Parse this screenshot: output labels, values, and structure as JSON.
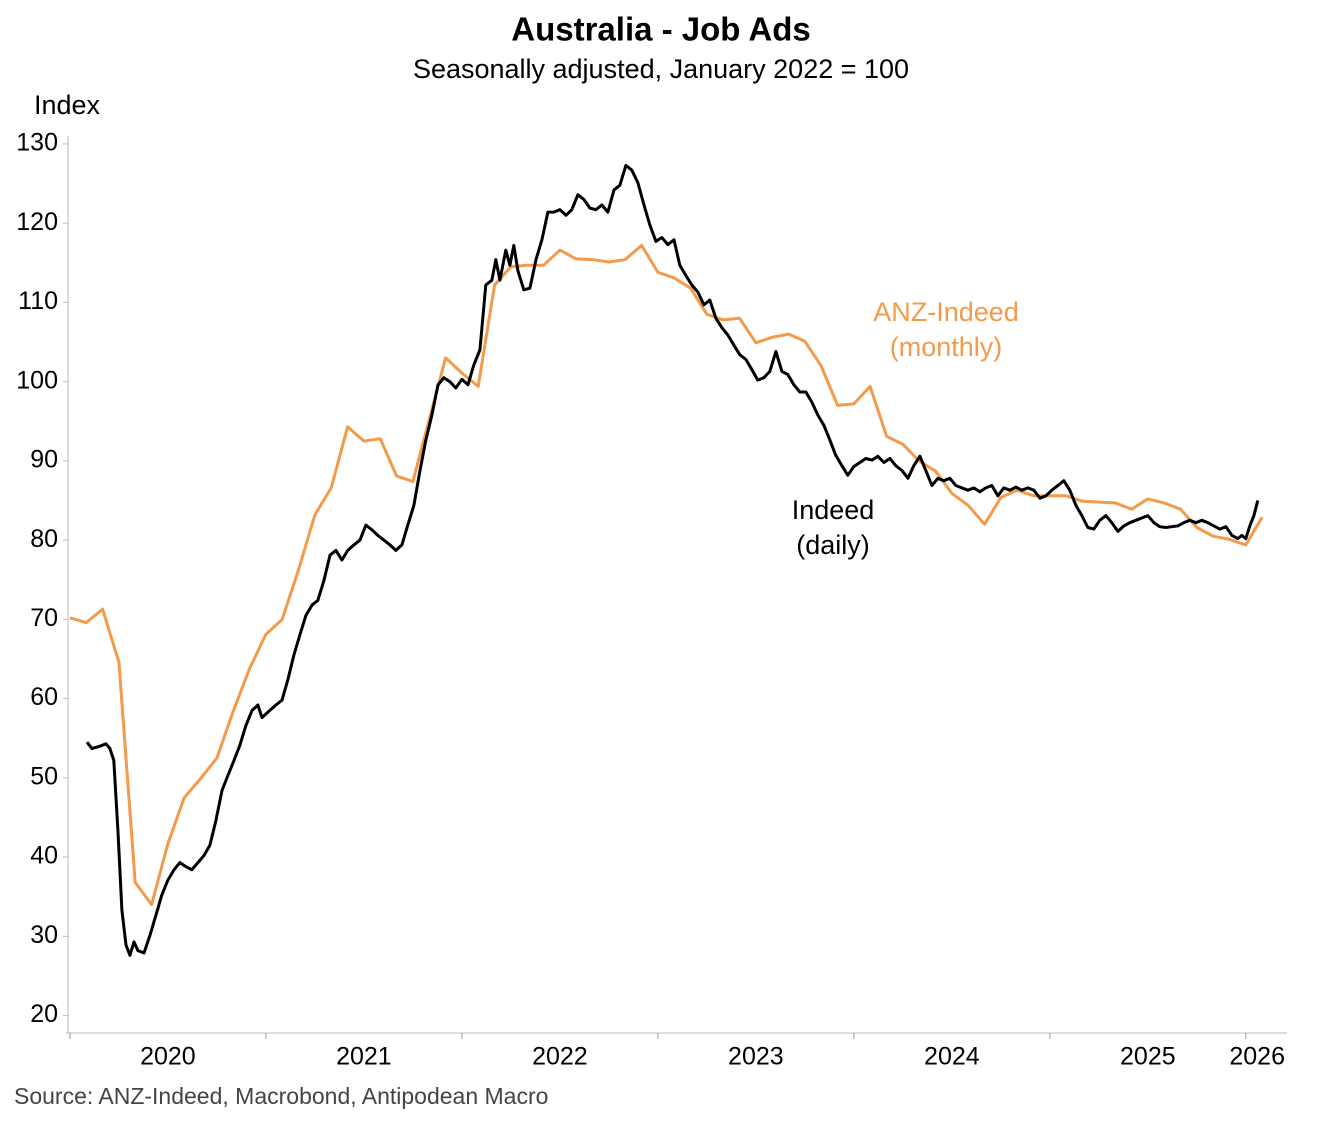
{
  "chart_data": {
    "type": "line",
    "title": "Australia - Job Ads",
    "subtitle": "Seasonally adjusted, January 2022 = 100",
    "y_label": "Index",
    "source": "Source: ANZ-Indeed, Macrobond, Antipodean Macro",
    "xlim": [
      2019.98,
      2026.21
    ],
    "xticks": [
      {
        "value": 2020,
        "label": "2020"
      },
      {
        "value": 2021,
        "label": "2021"
      },
      {
        "value": 2022,
        "label": "2022"
      },
      {
        "value": 2023,
        "label": "2023"
      },
      {
        "value": 2024,
        "label": "2024"
      },
      {
        "value": 2025,
        "label": "2025"
      },
      {
        "value": 2026,
        "label": "2026"
      }
    ],
    "ylim": [
      17.8,
      130.5
    ],
    "yticks": [
      20,
      30,
      40,
      50,
      60,
      70,
      80,
      90,
      100,
      110,
      120,
      130
    ],
    "grid": false,
    "series": [
      {
        "label": [
          "ANZ-Indeed",
          "(monthly)"
        ],
        "color": "#f39a4b",
        "x": [
          2020,
          2020.083,
          2020.167,
          2020.25,
          2020.333,
          2020.417,
          2020.5,
          2020.583,
          2020.667,
          2020.75,
          2020.833,
          2020.917,
          2021,
          2021.083,
          2021.167,
          2021.25,
          2021.333,
          2021.417,
          2021.5,
          2021.583,
          2021.667,
          2021.75,
          2021.833,
          2021.917,
          2022,
          2022.083,
          2022.167,
          2022.25,
          2022.333,
          2022.417,
          2022.5,
          2022.583,
          2022.667,
          2022.75,
          2022.833,
          2022.917,
          2023,
          2023.083,
          2023.167,
          2023.25,
          2023.333,
          2023.417,
          2023.5,
          2023.583,
          2023.667,
          2023.75,
          2023.833,
          2023.917,
          2024,
          2024.083,
          2024.167,
          2024.25,
          2024.333,
          2024.417,
          2024.5,
          2024.583,
          2024.667,
          2024.75,
          2024.833,
          2024.917,
          2025,
          2025.083,
          2025.167,
          2025.25,
          2025.333,
          2025.417,
          2025.5,
          2025.583,
          2025.667,
          2025.75,
          2025.833,
          2025.917,
          2026,
          2026.083
        ],
        "values": [
          70.2,
          69.6,
          71.3,
          64.6,
          36.8,
          34.0,
          41.7,
          47.5,
          49.9,
          52.5,
          58.4,
          63.8,
          68.1,
          70.0,
          76.3,
          83.2,
          86.6,
          94.3,
          92.5,
          92.8,
          88.1,
          87.4,
          95.2,
          103.0,
          101.1,
          99.4,
          112.2,
          114.5,
          114.7,
          114.7,
          116.6,
          115.5,
          115.4,
          115.1,
          115.4,
          117.2,
          113.8,
          113.1,
          111.8,
          108.5,
          107.8,
          108.0,
          104.9,
          105.6,
          106.0,
          105.1,
          102.0,
          97.0,
          97.2,
          99.4,
          93.1,
          92.1,
          90.0,
          88.7,
          85.9,
          84.4,
          82.0,
          85.4,
          86.3,
          85.6,
          85.6,
          85.6,
          84.9,
          84.8,
          84.7,
          83.9,
          85.2,
          84.7,
          83.9,
          81.6,
          80.5,
          80.1,
          79.4,
          82.9
        ]
      },
      {
        "label": [
          "Indeed",
          "(daily)"
        ],
        "color": "#000000",
        "x": [
          2020.087,
          2020.112,
          2020.153,
          2020.184,
          2020.204,
          2020.224,
          2020.245,
          2020.265,
          2020.286,
          2020.306,
          2020.327,
          2020.347,
          2020.378,
          2020.408,
          2020.439,
          2020.469,
          2020.5,
          2020.531,
          2020.561,
          2020.592,
          2020.622,
          2020.653,
          2020.684,
          2020.714,
          2020.745,
          2020.776,
          2020.806,
          2020.837,
          2020.867,
          2020.898,
          2020.929,
          2020.959,
          2020.98,
          2021.01,
          2021.051,
          2021.082,
          2021.112,
          2021.143,
          2021.173,
          2021.204,
          2021.235,
          2021.265,
          2021.296,
          2021.327,
          2021.357,
          2021.388,
          2021.418,
          2021.449,
          2021.48,
          2021.51,
          2021.541,
          2021.571,
          2021.602,
          2021.633,
          2021.663,
          2021.694,
          2021.724,
          2021.755,
          2021.786,
          2021.816,
          2021.847,
          2021.878,
          2021.908,
          2021.939,
          2021.969,
          2022,
          2022.031,
          2022.061,
          2022.092,
          2022.122,
          2022.153,
          2022.173,
          2022.194,
          2022.224,
          2022.245,
          2022.265,
          2022.286,
          2022.316,
          2022.347,
          2022.378,
          2022.408,
          2022.439,
          2022.469,
          2022.5,
          2022.531,
          2022.561,
          2022.592,
          2022.622,
          2022.653,
          2022.684,
          2022.714,
          2022.745,
          2022.776,
          2022.806,
          2022.837,
          2022.867,
          2022.898,
          2022.929,
          2022.959,
          2022.99,
          2023.02,
          2023.051,
          2023.082,
          2023.112,
          2023.143,
          2023.173,
          2023.204,
          2023.235,
          2023.265,
          2023.296,
          2023.327,
          2023.357,
          2023.388,
          2023.418,
          2023.449,
          2023.48,
          2023.51,
          2023.541,
          2023.571,
          2023.602,
          2023.633,
          2023.663,
          2023.694,
          2023.724,
          2023.755,
          2023.786,
          2023.816,
          2023.847,
          2023.878,
          2023.908,
          2023.939,
          2023.969,
          2024,
          2024.031,
          2024.061,
          2024.092,
          2024.122,
          2024.153,
          2024.184,
          2024.214,
          2024.245,
          2024.276,
          2024.306,
          2024.337,
          2024.367,
          2024.398,
          2024.429,
          2024.459,
          2024.49,
          2024.52,
          2024.551,
          2024.582,
          2024.612,
          2024.643,
          2024.673,
          2024.704,
          2024.735,
          2024.765,
          2024.796,
          2024.827,
          2024.857,
          2024.888,
          2024.918,
          2024.949,
          2024.98,
          2025.01,
          2025.041,
          2025.071,
          2025.102,
          2025.133,
          2025.163,
          2025.194,
          2025.224,
          2025.255,
          2025.286,
          2025.316,
          2025.347,
          2025.378,
          2025.408,
          2025.439,
          2025.469,
          2025.5,
          2025.531,
          2025.561,
          2025.592,
          2025.622,
          2025.653,
          2025.684,
          2025.714,
          2025.745,
          2025.776,
          2025.806,
          2025.837,
          2025.867,
          2025.898,
          2025.929,
          2025.959,
          2025.98,
          2026,
          2026.02,
          2026.041,
          2026.061
        ],
        "values": [
          54.5,
          53.7,
          54.0,
          54.3,
          53.7,
          52.2,
          43.4,
          33.3,
          28.9,
          27.6,
          29.3,
          28.2,
          27.9,
          30.1,
          32.7,
          35.2,
          37.1,
          38.4,
          39.3,
          38.8,
          38.4,
          39.3,
          40.2,
          41.5,
          44.6,
          48.4,
          50.3,
          52.2,
          54.1,
          56.6,
          58.5,
          59.2,
          57.6,
          58.3,
          59.2,
          59.8,
          62.4,
          65.5,
          68.0,
          70.5,
          71.8,
          72.4,
          74.9,
          78.1,
          78.7,
          77.5,
          78.7,
          79.4,
          80.0,
          81.9,
          81.3,
          80.6,
          80.0,
          79.4,
          78.7,
          79.4,
          81.9,
          84.4,
          88.8,
          92.6,
          95.8,
          99.6,
          100.5,
          100.0,
          99.2,
          100.3,
          99.6,
          102.1,
          104.0,
          112.2,
          112.8,
          115.4,
          112.8,
          116.6,
          114.7,
          117.2,
          114.0,
          111.6,
          111.8,
          115.4,
          117.9,
          121.4,
          121.4,
          121.7,
          121.0,
          121.7,
          123.6,
          123.0,
          121.9,
          121.7,
          122.3,
          121.4,
          124.2,
          124.8,
          127.3,
          126.7,
          125.1,
          122.3,
          119.8,
          117.7,
          118.2,
          117.3,
          117.9,
          114.7,
          113.4,
          112.2,
          111.3,
          109.7,
          110.3,
          108.0,
          106.8,
          105.9,
          104.6,
          103.4,
          102.8,
          101.5,
          100.2,
          100.5,
          101.3,
          103.8,
          101.3,
          100.9,
          99.6,
          98.7,
          98.7,
          97.4,
          95.8,
          94.5,
          92.6,
          90.7,
          89.4,
          88.2,
          89.3,
          89.8,
          90.3,
          90.1,
          90.6,
          89.8,
          90.3,
          89.4,
          88.8,
          87.8,
          89.4,
          90.6,
          88.8,
          86.9,
          87.8,
          87.5,
          87.8,
          86.9,
          86.6,
          86.3,
          86.6,
          86.1,
          86.6,
          86.9,
          85.6,
          86.6,
          86.3,
          86.7,
          86.3,
          86.6,
          86.3,
          85.3,
          85.6,
          86.3,
          86.9,
          87.5,
          86.3,
          84.4,
          83.1,
          81.6,
          81.4,
          82.5,
          83.1,
          82.2,
          81.1,
          81.8,
          82.2,
          82.5,
          82.8,
          83.1,
          82.2,
          81.7,
          81.6,
          81.7,
          81.8,
          82.2,
          82.5,
          82.2,
          82.5,
          82.2,
          81.8,
          81.4,
          81.7,
          80.6,
          80.2,
          80.6,
          80.2,
          81.8,
          83.1,
          85.0
        ]
      }
    ]
  }
}
